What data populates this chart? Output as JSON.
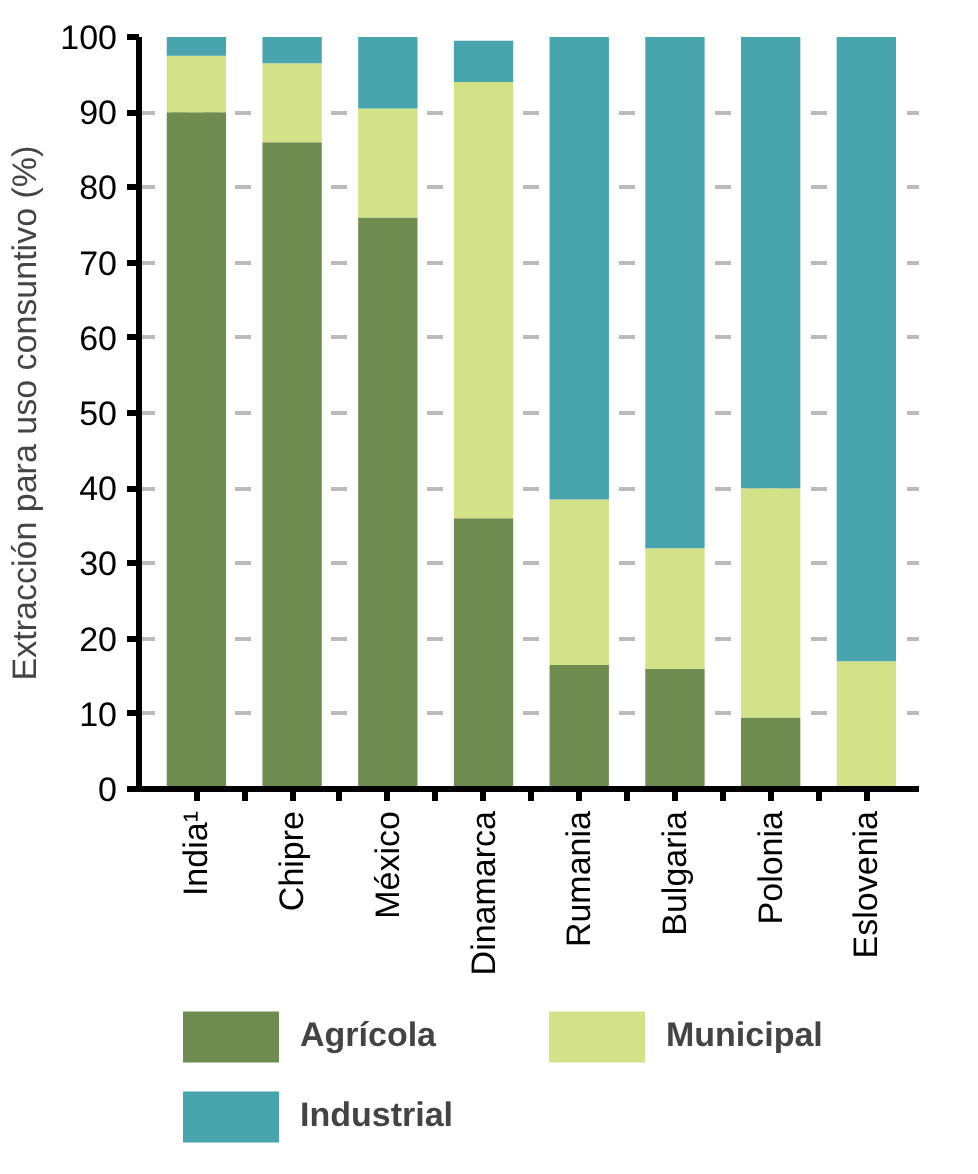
{
  "chart_data": {
    "type": "bar",
    "stacked": true,
    "ylabel": "Extracción para uso consuntivo (%)",
    "categories": [
      "India¹",
      "Chipre",
      "México",
      "Dinamarca",
      "Rumania",
      "Bulgaria",
      "Polonia",
      "Eslovenia"
    ],
    "series": [
      {
        "name": "Agrícola",
        "color": "#6f8d50",
        "values": [
          90,
          86,
          76,
          36,
          16.5,
          16,
          9.5,
          0
        ]
      },
      {
        "name": "Municipal",
        "color": "#d3e188",
        "values": [
          7.5,
          10.5,
          14.5,
          58,
          22,
          16,
          30.5,
          17
        ]
      },
      {
        "name": "Industrial",
        "color": "#48a5ae",
        "values": [
          2.5,
          3.5,
          9.5,
          5.5,
          61.5,
          68,
          60,
          83
        ]
      }
    ],
    "ylim": [
      0,
      100
    ],
    "yticks": [
      0,
      10,
      20,
      30,
      40,
      50,
      60,
      70,
      80,
      90,
      100
    ],
    "grid": "y",
    "legend": "bottom"
  }
}
